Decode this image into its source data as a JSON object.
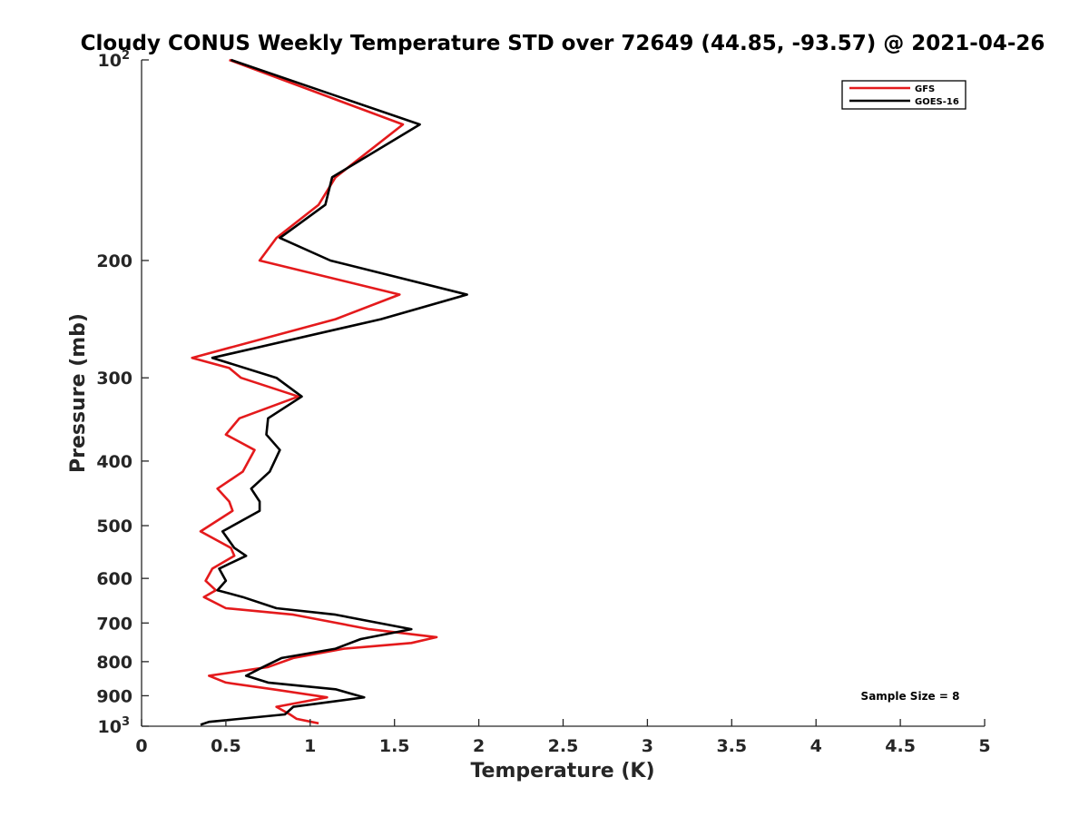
{
  "chart_data": {
    "type": "line",
    "title": "Cloudy CONUS Weekly Temperature STD over 72649 (44.85, -93.57) @ 2021-04-26",
    "xlabel": "Temperature (K)",
    "ylabel": "Pressure (mb)",
    "xlim": [
      0,
      5
    ],
    "ylim": [
      100,
      1000
    ],
    "yscale": "log",
    "y_reversed": true,
    "grid": false,
    "legend_position": "top-right",
    "x_ticks": [
      "0",
      "0.5",
      "1",
      "1.5",
      "2",
      "2.5",
      "3",
      "3.5",
      "4",
      "4.5",
      "5"
    ],
    "y_ticks": [
      {
        "value": 100,
        "label": "10",
        "exp": "2"
      },
      {
        "value": 200,
        "label": "200"
      },
      {
        "value": 300,
        "label": "300"
      },
      {
        "value": 400,
        "label": "400"
      },
      {
        "value": 500,
        "label": "500"
      },
      {
        "value": 600,
        "label": "600"
      },
      {
        "value": 700,
        "label": "700"
      },
      {
        "value": 800,
        "label": "800"
      },
      {
        "value": 900,
        "label": "900"
      },
      {
        "value": 1000,
        "label": "10",
        "exp": "3"
      }
    ],
    "series": [
      {
        "name": "GFS",
        "color": "#e41a1c",
        "points": [
          [
            0.52,
            100
          ],
          [
            1.55,
            125
          ],
          [
            1.15,
            150
          ],
          [
            1.05,
            165
          ],
          [
            0.8,
            185
          ],
          [
            0.7,
            200
          ],
          [
            1.53,
            225
          ],
          [
            1.15,
            245
          ],
          [
            0.3,
            280
          ],
          [
            0.52,
            290
          ],
          [
            0.59,
            300
          ],
          [
            0.93,
            320
          ],
          [
            0.58,
            345
          ],
          [
            0.5,
            365
          ],
          [
            0.67,
            385
          ],
          [
            0.6,
            415
          ],
          [
            0.45,
            440
          ],
          [
            0.52,
            460
          ],
          [
            0.54,
            475
          ],
          [
            0.35,
            510
          ],
          [
            0.53,
            540
          ],
          [
            0.55,
            555
          ],
          [
            0.42,
            580
          ],
          [
            0.38,
            605
          ],
          [
            0.44,
            625
          ],
          [
            0.37,
            640
          ],
          [
            0.5,
            665
          ],
          [
            0.9,
            680
          ],
          [
            1.35,
            715
          ],
          [
            1.75,
            735
          ],
          [
            1.6,
            750
          ],
          [
            1.2,
            765
          ],
          [
            0.9,
            790
          ],
          [
            0.75,
            815
          ],
          [
            0.4,
            840
          ],
          [
            0.5,
            860
          ],
          [
            0.78,
            880
          ],
          [
            1.1,
            905
          ],
          [
            0.8,
            935
          ],
          [
            0.88,
            960
          ],
          [
            0.92,
            975
          ],
          [
            1.05,
            990
          ]
        ]
      },
      {
        "name": "GOES-16",
        "color": "#000000",
        "points": [
          [
            0.53,
            100
          ],
          [
            1.65,
            125
          ],
          [
            1.13,
            150
          ],
          [
            1.09,
            165
          ],
          [
            0.82,
            185
          ],
          [
            1.12,
            200
          ],
          [
            1.93,
            225
          ],
          [
            1.42,
            245
          ],
          [
            0.42,
            280
          ],
          [
            0.8,
            300
          ],
          [
            0.95,
            320
          ],
          [
            0.75,
            345
          ],
          [
            0.74,
            365
          ],
          [
            0.82,
            385
          ],
          [
            0.76,
            415
          ],
          [
            0.65,
            440
          ],
          [
            0.7,
            460
          ],
          [
            0.7,
            475
          ],
          [
            0.48,
            510
          ],
          [
            0.55,
            540
          ],
          [
            0.62,
            555
          ],
          [
            0.46,
            580
          ],
          [
            0.5,
            605
          ],
          [
            0.45,
            625
          ],
          [
            0.6,
            640
          ],
          [
            0.8,
            665
          ],
          [
            1.15,
            680
          ],
          [
            1.6,
            715
          ],
          [
            1.3,
            740
          ],
          [
            1.15,
            765
          ],
          [
            0.83,
            790
          ],
          [
            0.72,
            815
          ],
          [
            0.62,
            840
          ],
          [
            0.75,
            860
          ],
          [
            1.15,
            880
          ],
          [
            1.32,
            905
          ],
          [
            0.9,
            935
          ],
          [
            0.85,
            960
          ],
          [
            0.4,
            985
          ],
          [
            0.35,
            995
          ]
        ]
      }
    ],
    "annotations": [
      {
        "text": "Sample Size = 8"
      }
    ]
  }
}
